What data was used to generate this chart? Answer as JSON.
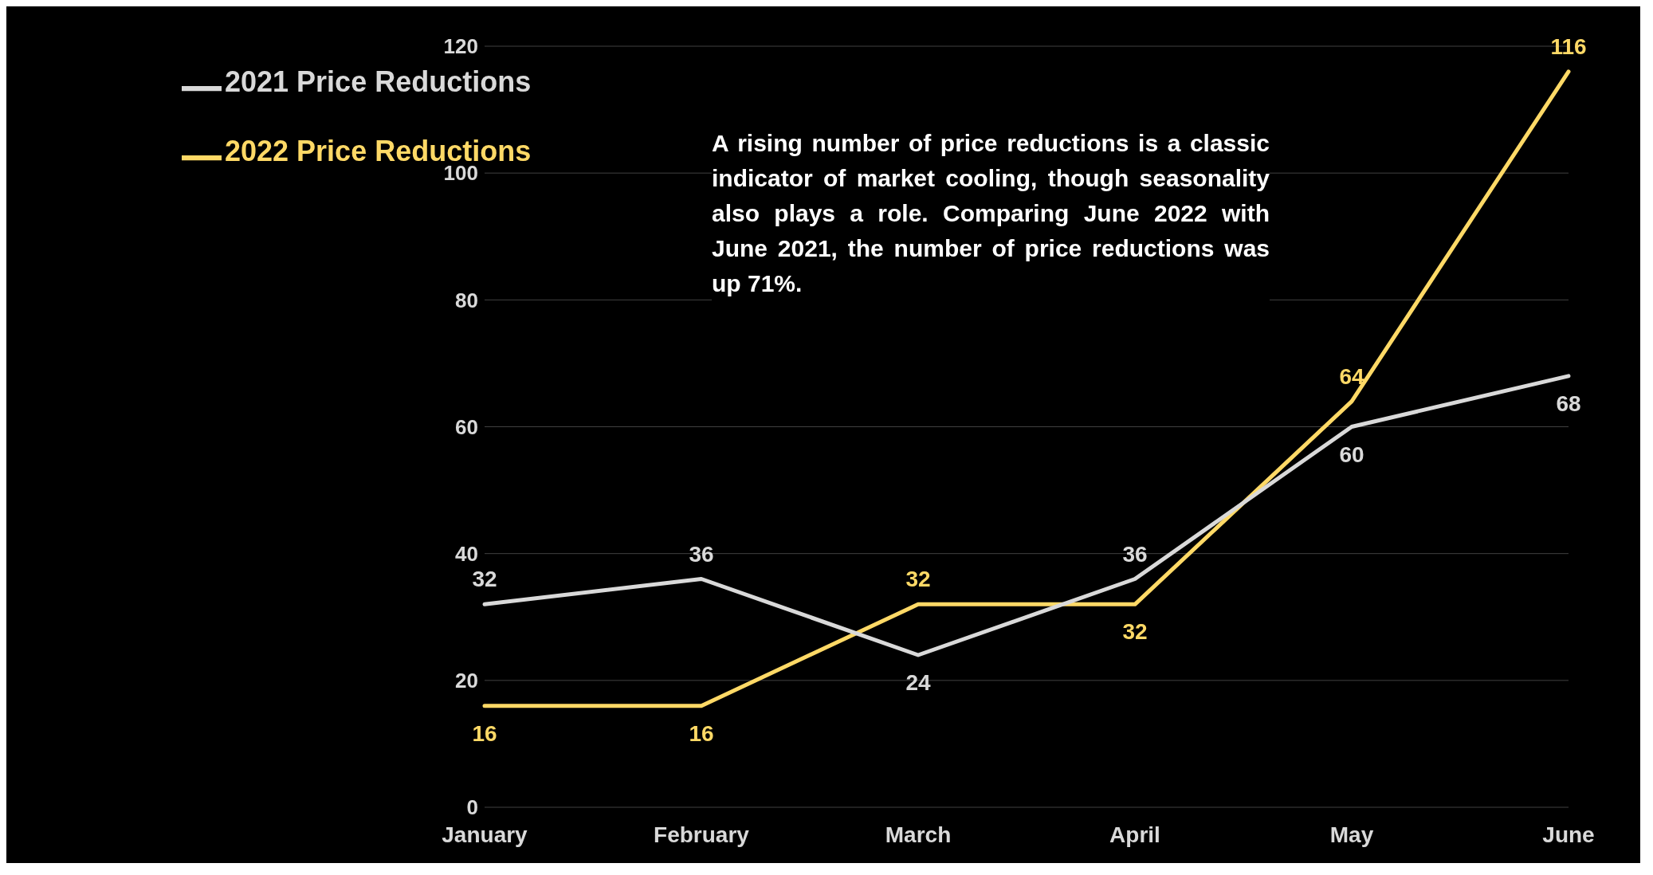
{
  "chart_data": {
    "type": "line",
    "categories": [
      "January",
      "February",
      "March",
      "April",
      "May",
      "June"
    ],
    "series": [
      {
        "name": "2022 Price Reductions",
        "color": "#ffd966",
        "values": [
          16,
          16,
          32,
          32,
          64,
          116
        ]
      },
      {
        "name": "2021 Price Reductions",
        "color": "#d9d9d9",
        "values": [
          32,
          36,
          24,
          36,
          60,
          68
        ]
      }
    ],
    "ylim": [
      0,
      120
    ],
    "yticks": [
      0,
      20,
      40,
      60,
      80,
      100,
      120
    ],
    "grid": "y",
    "legend": "top left",
    "data_labels": true,
    "marker": "none",
    "annotations": [
      "A rising number of price reductions is a classic indicator of market cooling, though seasonality also plays a role. Comparing June 2022 with June 2021, the number of price reductions was up 71%."
    ]
  }
}
